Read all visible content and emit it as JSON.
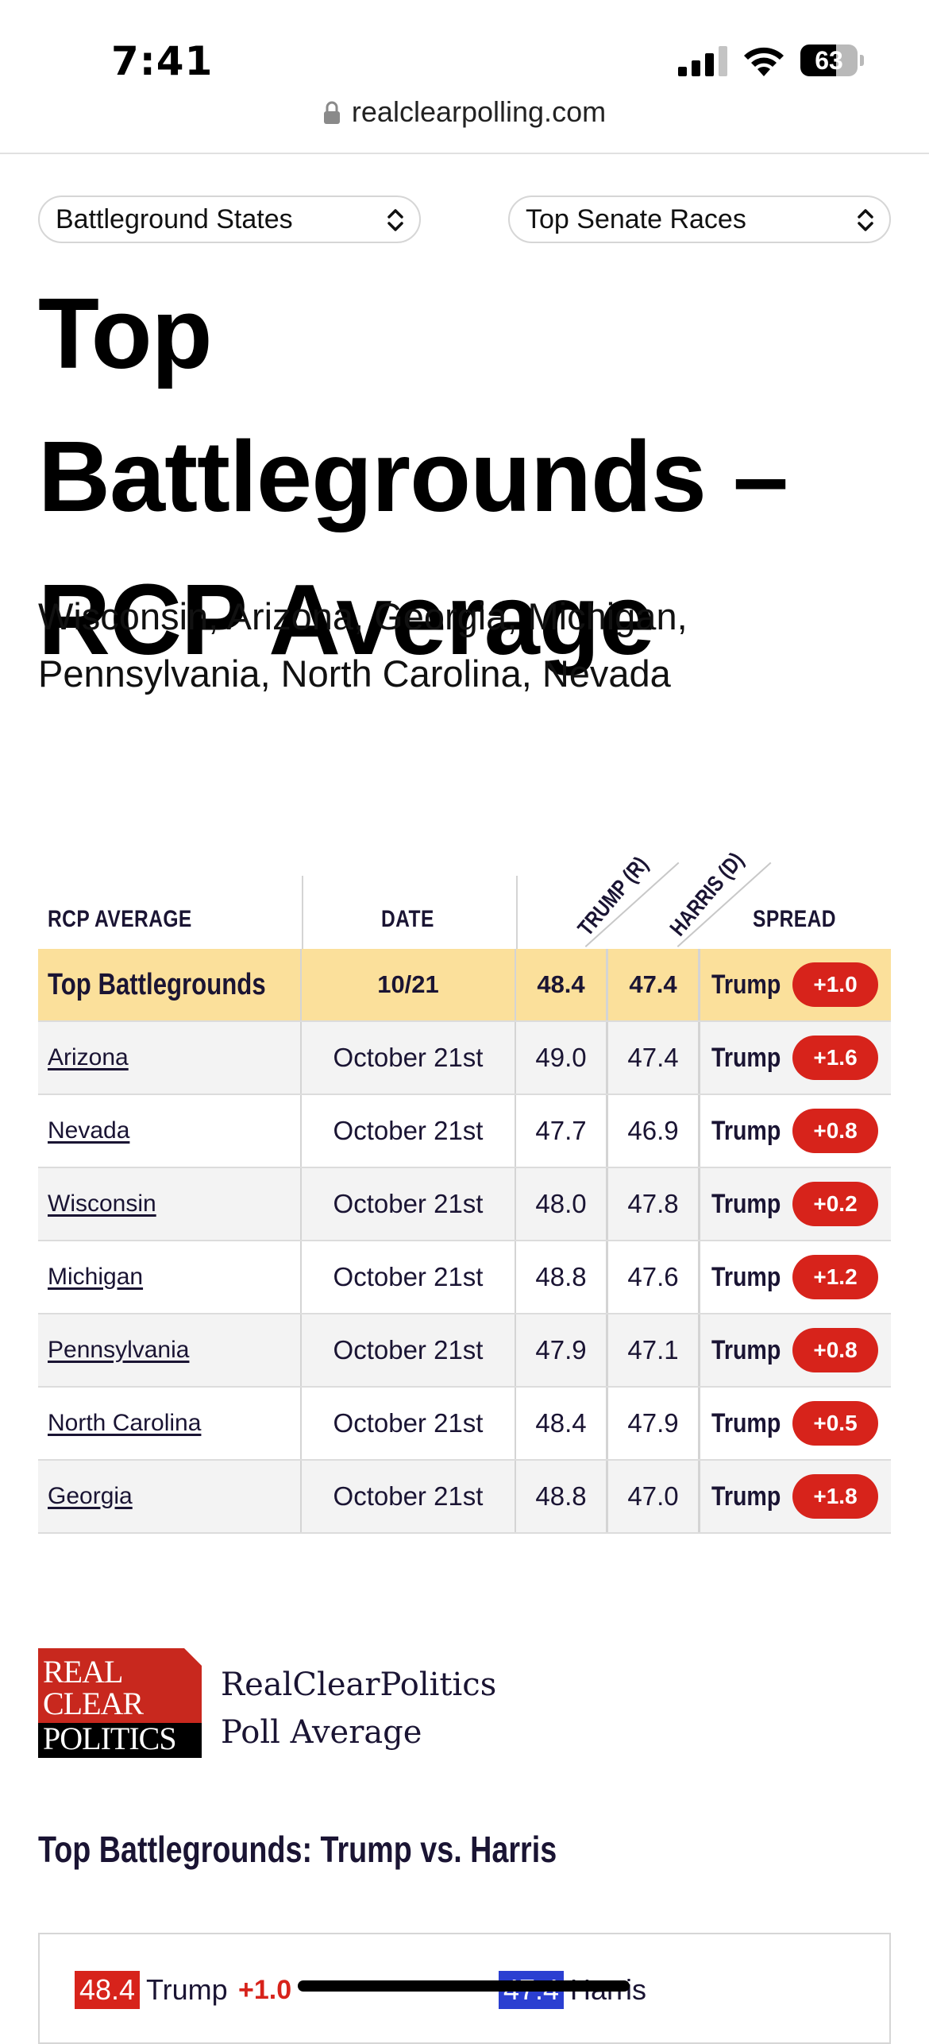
{
  "status_bar": {
    "time": "7:41",
    "battery": "63",
    "battery_level": 0.63
  },
  "browser": {
    "url": "realclearpolling.com"
  },
  "selectors": {
    "left": "Battleground States",
    "right": "Top Senate Races"
  },
  "page": {
    "title": "Top Battlegrounds – RCP Average",
    "subtitle": "Wisconsin, Arizona, Georgia, Michigan, Pennsylvania, North Carolina, Nevada"
  },
  "table": {
    "headers": {
      "rcp_average": "RCP AVERAGE",
      "date": "DATE",
      "trump": "TRUMP (R)",
      "harris": "HARRIS (D)",
      "spread": "SPREAD"
    },
    "summary": {
      "name": "Top Battlegrounds",
      "date": "10/21",
      "trump": "48.4",
      "harris": "47.4",
      "leader": "Trump",
      "spread": "+1.0"
    },
    "rows": [
      {
        "name": "Arizona",
        "date": "October 21st",
        "trump": "49.0",
        "harris": "47.4",
        "leader": "Trump",
        "spread": "+1.6"
      },
      {
        "name": "Nevada",
        "date": "October 21st",
        "trump": "47.7",
        "harris": "46.9",
        "leader": "Trump",
        "spread": "+0.8"
      },
      {
        "name": "Wisconsin",
        "date": "October 21st",
        "trump": "48.0",
        "harris": "47.8",
        "leader": "Trump",
        "spread": "+0.2"
      },
      {
        "name": "Michigan",
        "date": "October 21st",
        "trump": "48.8",
        "harris": "47.6",
        "leader": "Trump",
        "spread": "+1.2"
      },
      {
        "name": "Pennsylvania",
        "date": "October 21st",
        "trump": "47.9",
        "harris": "47.1",
        "leader": "Trump",
        "spread": "+0.8"
      },
      {
        "name": "North Carolina",
        "date": "October 21st",
        "trump": "48.4",
        "harris": "47.9",
        "leader": "Trump",
        "spread": "+0.5"
      },
      {
        "name": "Georgia",
        "date": "October 21st",
        "trump": "48.8",
        "harris": "47.0",
        "leader": "Trump",
        "spread": "+1.8"
      }
    ]
  },
  "footer": {
    "logo_lines": [
      "REAL",
      "CLEAR",
      "POLITICS"
    ],
    "poll_name_line1": "RealClearPolitics",
    "poll_name_line2": "Poll Average",
    "section_title": "Top Battlegrounds: Trump vs. Harris",
    "trump_value": "48.4",
    "trump_label": "Trump",
    "trump_spread": "+1.0",
    "harris_value": "47.4",
    "harris_label": "Harris"
  },
  "colors": {
    "republican": "#d7231b",
    "democrat": "#2b3fd1",
    "highlight_row": "#fbe09b",
    "text_dark": "#1a1433"
  },
  "icons": {
    "lock": "lock-icon",
    "signal": "cellular-signal-icon",
    "wifi": "wifi-icon",
    "battery": "battery-icon",
    "select_chevron": "chevron-up-down-icon"
  }
}
